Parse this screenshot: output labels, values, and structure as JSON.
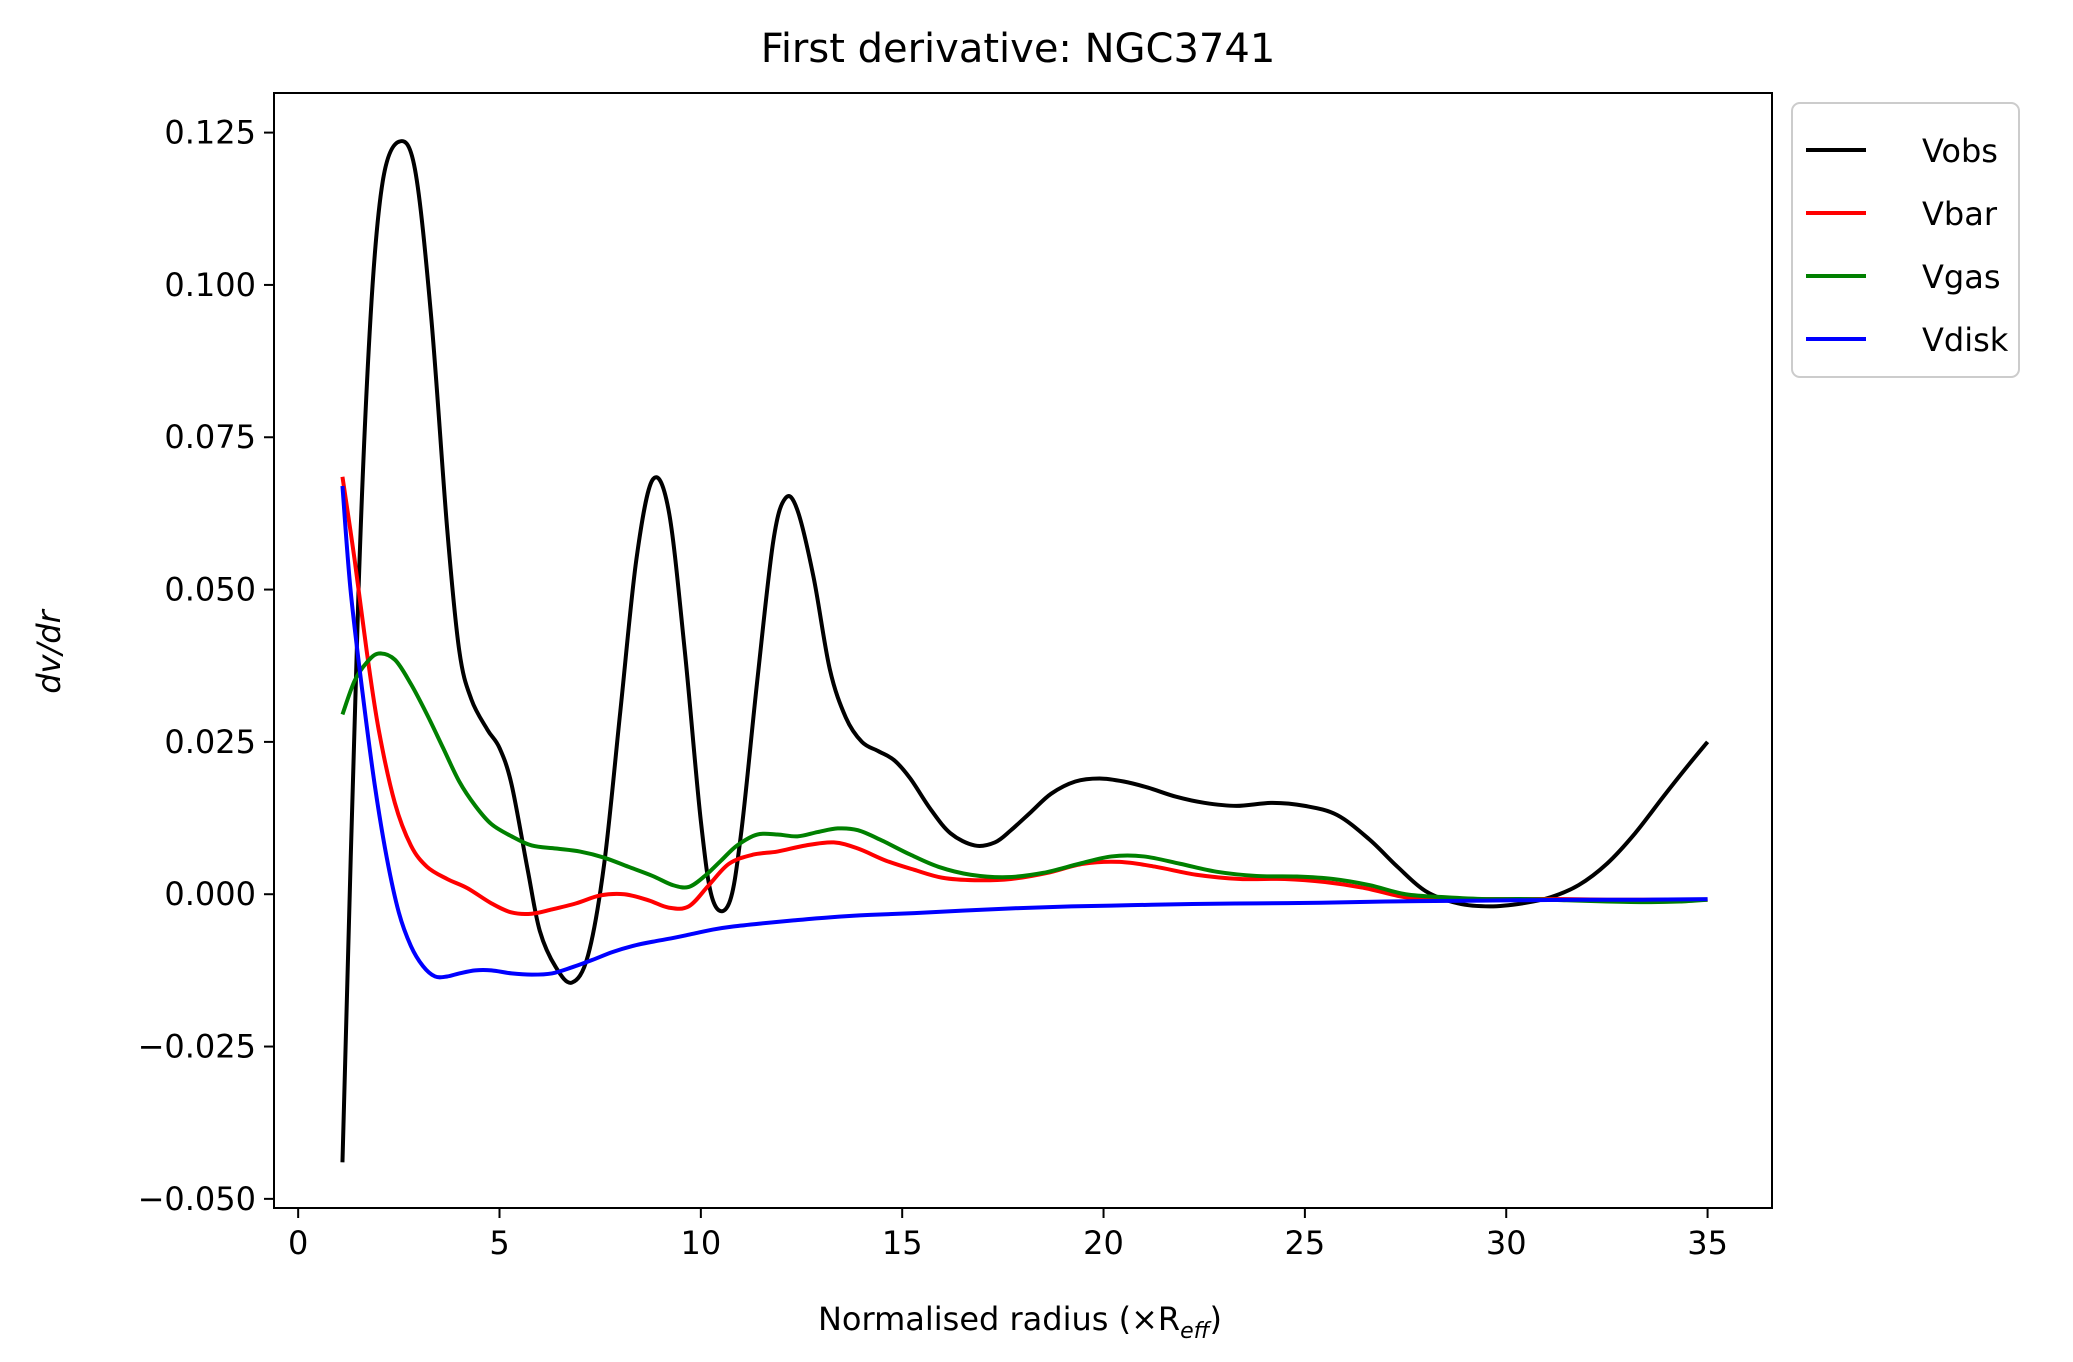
{
  "chart_data": {
    "type": "line",
    "title": "First derivative: NGC3741",
    "xlabel": "Normalised radius (×R",
    "xlabel_subscript": "eff",
    "xlabel_suffix": ")",
    "ylabel": "dv/dr",
    "xlim": [
      -0.6,
      36.6
    ],
    "ylim": [
      -0.0515,
      0.1315
    ],
    "xticks": [
      0,
      5,
      10,
      15,
      20,
      25,
      30,
      35
    ],
    "xtick_labels": [
      "0",
      "5",
      "10",
      "15",
      "20",
      "25",
      "30",
      "35"
    ],
    "yticks": [
      -0.05,
      -0.025,
      0.0,
      0.025,
      0.05,
      0.075,
      0.1,
      0.125
    ],
    "ytick_labels": [
      "−0.050",
      "−0.025",
      "0.000",
      "0.025",
      "0.050",
      "0.075",
      "0.100",
      "0.125"
    ],
    "grid": false,
    "legend_position": "outside-top-right",
    "series": [
      {
        "name": "Vobs",
        "color": "#000000",
        "x": [
          1.1,
          1.5,
          1.8,
          2.1,
          2.5,
          2.9,
          3.3,
          3.7,
          4.0,
          4.3,
          4.7,
          5.0,
          5.3,
          5.7,
          6.0,
          6.4,
          6.8,
          7.2,
          7.6,
          8.0,
          8.4,
          8.8,
          9.2,
          9.6,
          10.0,
          10.3,
          10.7,
          11.0,
          11.4,
          11.8,
          12.1,
          12.4,
          12.8,
          13.2,
          13.6,
          14.0,
          14.4,
          14.8,
          15.2,
          15.7,
          16.2,
          16.8,
          17.3,
          17.7,
          18.2,
          18.7,
          19.3,
          19.9,
          20.5,
          21.1,
          21.8,
          22.5,
          23.3,
          24.2,
          25.0,
          25.8,
          26.6,
          27.3,
          28.0,
          28.8,
          29.6,
          30.4,
          31.1,
          31.8,
          32.5,
          33.2,
          33.9,
          34.5,
          35.0
        ],
        "y": [
          -0.044,
          0.05,
          0.095,
          0.117,
          0.1235,
          0.119,
          0.095,
          0.06,
          0.04,
          0.032,
          0.027,
          0.024,
          0.018,
          0.004,
          -0.006,
          -0.012,
          -0.0145,
          -0.01,
          0.005,
          0.03,
          0.055,
          0.068,
          0.063,
          0.04,
          0.012,
          -0.001,
          -0.0015,
          0.01,
          0.035,
          0.058,
          0.065,
          0.063,
          0.052,
          0.037,
          0.029,
          0.025,
          0.0235,
          0.022,
          0.019,
          0.014,
          0.01,
          0.008,
          0.0085,
          0.0105,
          0.0135,
          0.0165,
          0.0185,
          0.019,
          0.0185,
          0.0175,
          0.016,
          0.015,
          0.0145,
          0.015,
          0.0145,
          0.013,
          0.009,
          0.0045,
          0.0005,
          -0.0015,
          -0.002,
          -0.0015,
          -0.0005,
          0.0015,
          0.005,
          0.01,
          0.016,
          0.021,
          0.025
        ]
      },
      {
        "name": "Vbar",
        "color": "#ff0000",
        "x": [
          1.1,
          1.4,
          1.7,
          2.0,
          2.4,
          2.8,
          3.2,
          3.7,
          4.2,
          4.8,
          5.3,
          5.8,
          6.3,
          6.9,
          7.5,
          8.1,
          8.7,
          9.2,
          9.7,
          10.2,
          10.7,
          11.3,
          11.9,
          12.6,
          13.3,
          13.9,
          14.6,
          15.3,
          16.0,
          16.8,
          17.7,
          18.6,
          19.5,
          20.4,
          21.3,
          22.3,
          23.4,
          24.5,
          25.5,
          26.5,
          27.5,
          28.5,
          29.5,
          30.5,
          31.5,
          32.5,
          33.5,
          34.3,
          35.0
        ],
        "y": [
          0.0685,
          0.055,
          0.04,
          0.027,
          0.015,
          0.008,
          0.0045,
          0.0025,
          0.001,
          -0.0015,
          -0.003,
          -0.0032,
          -0.0025,
          -0.0015,
          -0.0002,
          0.0,
          -0.001,
          -0.0022,
          -0.002,
          0.0015,
          0.005,
          0.0065,
          0.007,
          0.008,
          0.0085,
          0.0075,
          0.0055,
          0.004,
          0.0027,
          0.0023,
          0.0025,
          0.0035,
          0.005,
          0.0053,
          0.0045,
          0.0032,
          0.0025,
          0.0025,
          0.002,
          0.001,
          -0.0005,
          -0.0008,
          -0.0008,
          -0.0008,
          -0.0008,
          -0.0009,
          -0.0009,
          -0.0009,
          -0.0009
        ]
      },
      {
        "name": "Vgas",
        "color": "#008000",
        "x": [
          1.1,
          1.4,
          1.7,
          2.0,
          2.4,
          2.8,
          3.2,
          3.6,
          4.0,
          4.4,
          4.8,
          5.3,
          5.8,
          6.4,
          7.0,
          7.6,
          8.2,
          8.8,
          9.3,
          9.7,
          10.1,
          10.5,
          10.9,
          11.4,
          11.9,
          12.4,
          12.9,
          13.4,
          13.9,
          14.5,
          15.2,
          15.9,
          16.7,
          17.6,
          18.5,
          19.4,
          20.2,
          21.0,
          21.9,
          22.8,
          23.8,
          24.8,
          25.7,
          26.6,
          27.5,
          28.5,
          29.5,
          30.5,
          31.5,
          32.5,
          33.5,
          34.3,
          35.0
        ],
        "y": [
          0.0295,
          0.035,
          0.038,
          0.0395,
          0.0385,
          0.0345,
          0.0295,
          0.024,
          0.0185,
          0.0145,
          0.0115,
          0.0095,
          0.008,
          0.0075,
          0.007,
          0.006,
          0.0045,
          0.003,
          0.0015,
          0.0012,
          0.003,
          0.0055,
          0.008,
          0.0098,
          0.0098,
          0.0095,
          0.0102,
          0.0108,
          0.0105,
          0.0088,
          0.0065,
          0.0045,
          0.0032,
          0.0028,
          0.0035,
          0.005,
          0.0062,
          0.0062,
          0.005,
          0.0037,
          0.003,
          0.0029,
          0.0025,
          0.0015,
          0.0,
          -0.0005,
          -0.0008,
          -0.0008,
          -0.001,
          -0.0012,
          -0.0013,
          -0.0012,
          -0.0009
        ]
      },
      {
        "name": "Vdisk",
        "color": "#0000ff",
        "x": [
          1.1,
          1.3,
          1.6,
          1.9,
          2.2,
          2.5,
          2.8,
          3.1,
          3.4,
          3.7,
          4.0,
          4.4,
          4.8,
          5.3,
          5.8,
          6.3,
          6.8,
          7.3,
          7.8,
          8.3,
          8.8,
          9.3,
          9.8,
          10.3,
          10.8,
          11.5,
          12.3,
          13.2,
          14.2,
          15.3,
          16.5,
          17.8,
          19.2,
          20.7,
          22.2,
          23.8,
          25.4,
          27.0,
          28.6,
          30.2,
          31.8,
          33.4,
          35.0
        ],
        "y": [
          0.067,
          0.05,
          0.033,
          0.018,
          0.006,
          -0.003,
          -0.0085,
          -0.0118,
          -0.0135,
          -0.0135,
          -0.013,
          -0.0125,
          -0.0125,
          -0.013,
          -0.0132,
          -0.013,
          -0.012,
          -0.0108,
          -0.0095,
          -0.0085,
          -0.0078,
          -0.0072,
          -0.0065,
          -0.0058,
          -0.0053,
          -0.0048,
          -0.0043,
          -0.0038,
          -0.0034,
          -0.0031,
          -0.0027,
          -0.0023,
          -0.002,
          -0.0018,
          -0.0016,
          -0.0015,
          -0.0014,
          -0.0012,
          -0.0011,
          -0.001,
          -0.0009,
          -0.0009,
          -0.0008
        ]
      }
    ]
  }
}
